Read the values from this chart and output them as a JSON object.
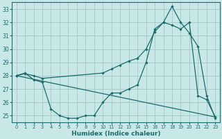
{
  "background_color": "#c8e8e8",
  "grid_color": "#a8cccc",
  "line_color": "#1a6b6b",
  "xlabel": "Humidex (Indice chaleur)",
  "xlim": [
    -0.5,
    23.5
  ],
  "ylim": [
    24.5,
    33.5
  ],
  "yticks": [
    25,
    26,
    27,
    28,
    29,
    30,
    31,
    32,
    33
  ],
  "xticks": [
    0,
    1,
    2,
    3,
    4,
    5,
    6,
    7,
    8,
    9,
    10,
    11,
    12,
    13,
    14,
    15,
    16,
    17,
    18,
    19,
    20,
    21,
    22,
    23
  ],
  "line1_x": [
    0,
    1,
    2,
    3,
    4,
    5,
    6,
    7,
    8,
    9,
    10,
    11,
    12,
    13,
    14,
    15,
    16,
    17,
    18,
    19,
    20,
    21,
    22,
    23
  ],
  "line1_y": [
    28.0,
    28.2,
    27.7,
    27.5,
    25.5,
    25.0,
    24.8,
    24.8,
    25.0,
    25.0,
    26.0,
    26.7,
    26.7,
    27.0,
    27.3,
    29.0,
    31.5,
    32.0,
    33.2,
    32.0,
    31.2,
    30.2,
    26.5,
    24.8
  ],
  "line2_x": [
    0,
    23
  ],
  "line2_y": [
    28.0,
    24.9
  ],
  "line3_x": [
    0,
    1,
    2,
    3,
    10,
    11,
    12,
    13,
    14,
    15,
    16,
    17,
    18,
    19,
    20,
    21,
    22,
    23
  ],
  "line3_y": [
    28.0,
    28.15,
    28.0,
    27.8,
    28.2,
    28.5,
    28.8,
    29.1,
    29.3,
    30.0,
    31.3,
    32.0,
    31.8,
    31.5,
    32.0,
    26.5,
    26.2,
    24.9
  ]
}
